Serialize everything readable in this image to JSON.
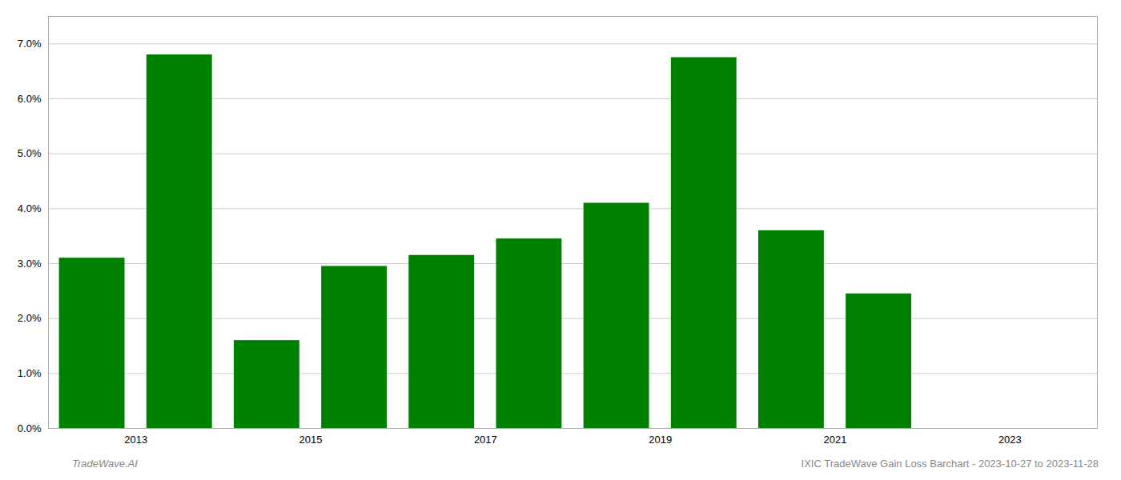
{
  "chart_data": {
    "type": "bar",
    "x": [
      2013,
      2014,
      2015,
      2016,
      2017,
      2018,
      2019,
      2020,
      2021,
      2022
    ],
    "values": [
      0.031,
      0.068,
      0.016,
      0.0295,
      0.0315,
      0.0345,
      0.041,
      0.0675,
      0.036,
      0.0245
    ],
    "color": "#008000",
    "xlim": [
      2012.5,
      2024.5
    ],
    "xticks": [
      {
        "value": 2013.5,
        "label": "2013"
      },
      {
        "value": 2015.5,
        "label": "2015"
      },
      {
        "value": 2017.5,
        "label": "2017"
      },
      {
        "value": 2019.5,
        "label": "2019"
      },
      {
        "value": 2021.5,
        "label": "2021"
      },
      {
        "value": 2023.5,
        "label": "2023"
      }
    ],
    "ylim": [
      0.0,
      0.075
    ],
    "yticks": [
      {
        "value": 0.0,
        "label": "0.0%"
      },
      {
        "value": 0.01,
        "label": "1.0%"
      },
      {
        "value": 0.02,
        "label": "2.0%"
      },
      {
        "value": 0.03,
        "label": "3.0%"
      },
      {
        "value": 0.04,
        "label": "4.0%"
      },
      {
        "value": 0.05,
        "label": "5.0%"
      },
      {
        "value": 0.06,
        "label": "6.0%"
      },
      {
        "value": 0.07,
        "label": "7.0%"
      }
    ],
    "grid": true,
    "annotations": [
      "TradeWave.AI",
      "IXIC TradeWave Gain Loss Barchart - 2023-10-27 to 2023-11-28"
    ]
  }
}
